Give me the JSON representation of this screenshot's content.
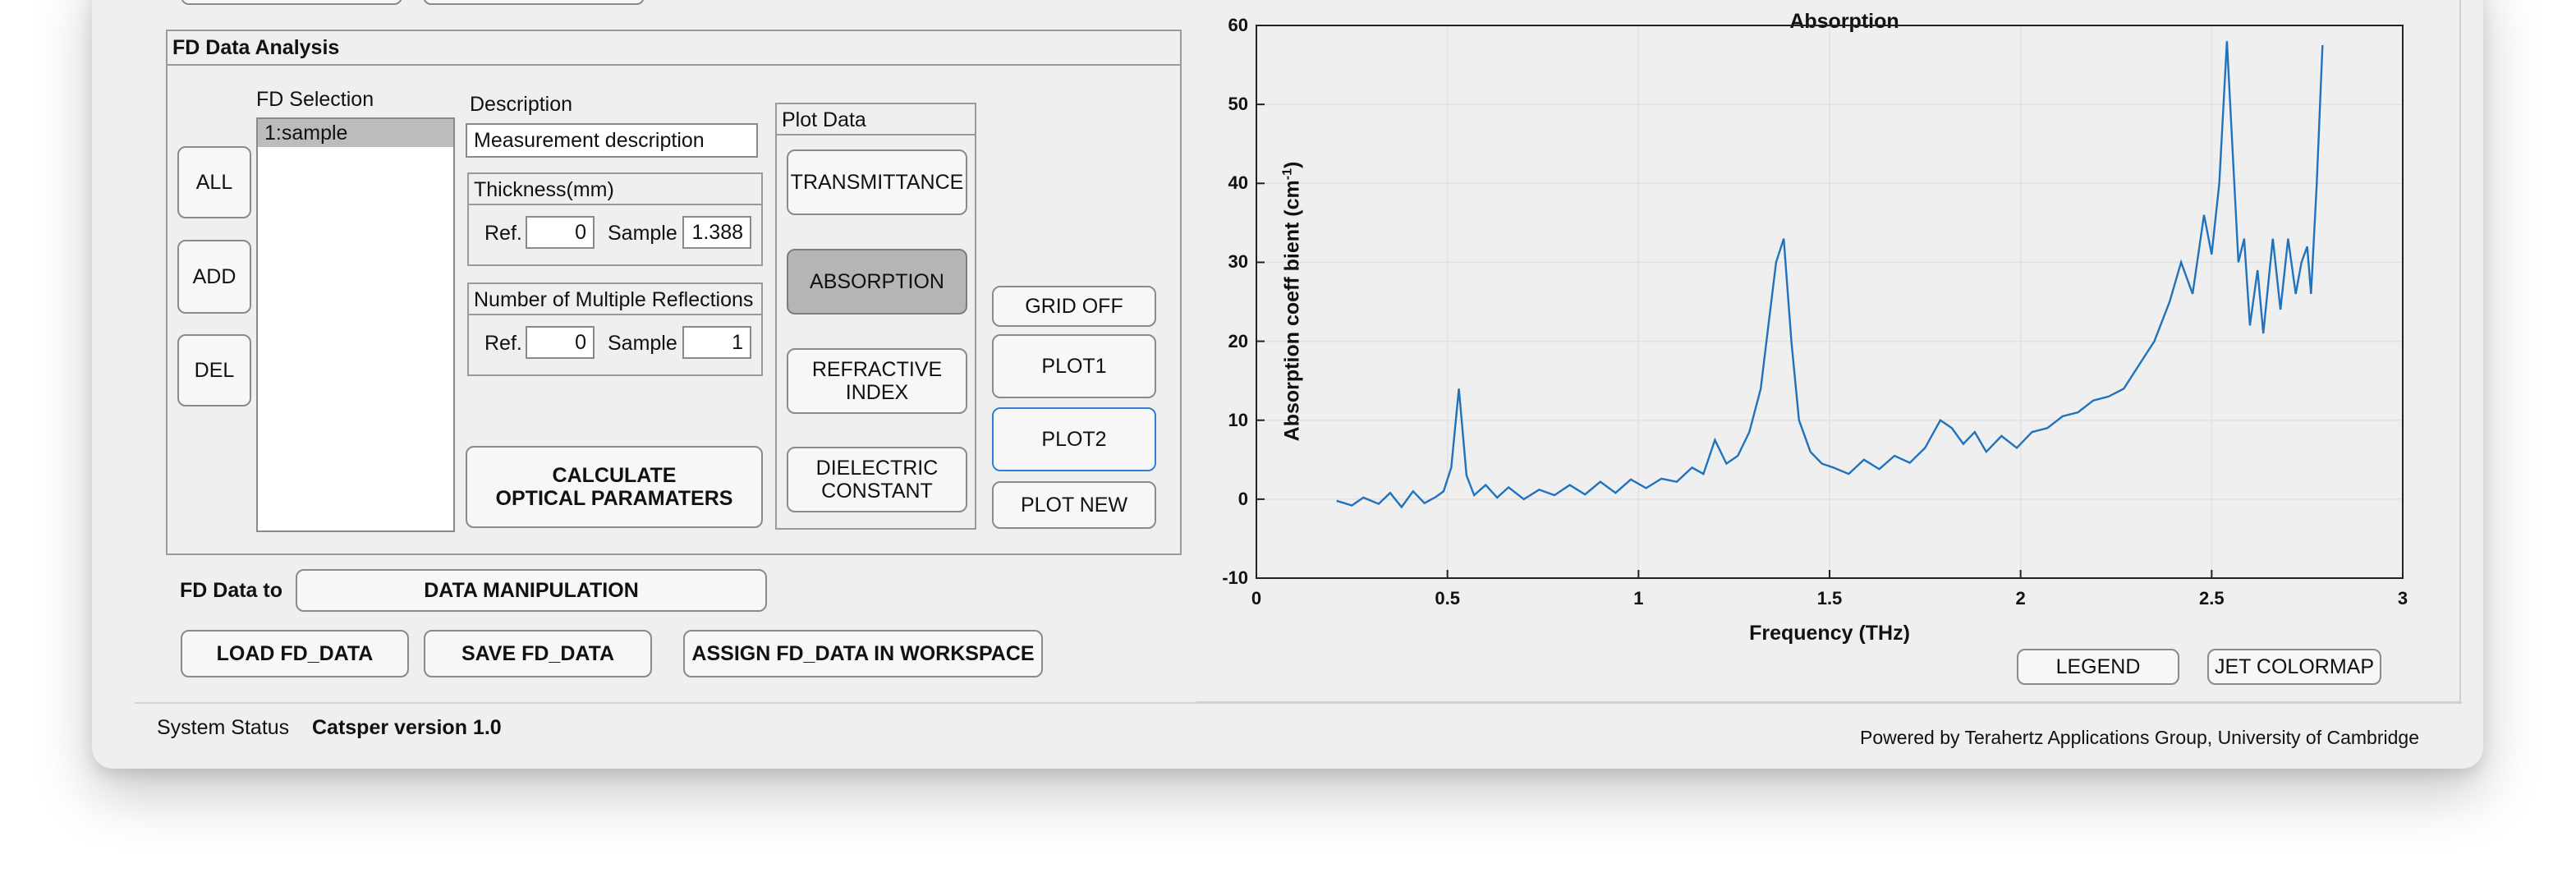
{
  "fd_panel": {
    "title": "FD Data Analysis",
    "selection_label": "FD Selection",
    "selection_items": [
      "1:sample"
    ],
    "all_button": "ALL",
    "add_button": "ADD",
    "del_button": "DEL",
    "description_label": "Description",
    "description_value": "Measurement description",
    "thickness_title": "Thickness(mm)",
    "thickness_ref_label": "Ref.",
    "thickness_ref_value": "0",
    "thickness_sample_label": "Sample",
    "thickness_sample_value": "1.388",
    "reflections_title": "Number of Multiple Reflections",
    "reflections_ref_label": "Ref.",
    "reflections_ref_value": "0",
    "reflections_sample_label": "Sample",
    "reflections_sample_value": "1",
    "calculate_line1": "CALCULATE",
    "calculate_line2": "OPTICAL PARAMATERS",
    "plot_data_title": "Plot Data",
    "transmittance_button": "TRANSMITTANCE",
    "absorption_button": "ABSORPTION",
    "refractive_line1": "REFRACTIVE",
    "refractive_line2": "INDEX",
    "dielectric_line1": "DIELECTRIC",
    "dielectric_line2": "CONSTANT",
    "grid_off_button": "GRID OFF",
    "plot1_button": "PLOT1",
    "plot2_button": "PLOT2",
    "plot_new_button": "PLOT NEW"
  },
  "bottom": {
    "fd_data_to_label": "FD Data to",
    "data_manipulation_button": "DATA MANIPULATION",
    "load_button": "LOAD FD_DATA",
    "save_button": "SAVE FD_DATA",
    "assign_button": "ASSIGN FD_DATA IN WORKSPACE",
    "legend_button": "LEGEND",
    "jet_colormap_button": "JET COLORMAP"
  },
  "status": {
    "label": "System Status",
    "value": "Catsper version 1.0",
    "credit": "Powered by Terahertz Applications Group, University of Cambridge"
  },
  "colors": {
    "series": "#1f72bd",
    "pressed": "#b5b5b5",
    "focus": "#2f7fd6"
  },
  "chart_data": {
    "type": "line",
    "title": "Absorption",
    "xlabel": "Frequency (THz)",
    "ylabel_main": "Absorption  coeff bient  (cm",
    "ylabel_sup": "-1",
    "ylabel_close": ")",
    "xlim": [
      0,
      3
    ],
    "ylim": [
      -10,
      60
    ],
    "xticks": [
      0,
      0.5,
      1,
      1.5,
      2,
      2.5,
      3
    ],
    "xtick_labels": [
      "0",
      "0.5",
      "1",
      "1.5",
      "2",
      "2.5",
      "3"
    ],
    "yticks": [
      -10,
      0,
      10,
      20,
      30,
      40,
      50,
      60
    ],
    "ytick_labels": [
      "-10",
      "0",
      "10",
      "20",
      "30",
      "40",
      "50",
      "60"
    ],
    "grid": true,
    "series": [
      {
        "x": [
          0.21,
          0.25,
          0.28,
          0.32,
          0.35,
          0.38,
          0.41,
          0.44,
          0.47,
          0.49,
          0.51,
          0.53,
          0.55,
          0.57,
          0.6,
          0.63,
          0.66,
          0.7,
          0.74,
          0.78,
          0.82,
          0.86,
          0.9,
          0.94,
          0.98,
          1.02,
          1.06,
          1.1,
          1.14,
          1.17,
          1.2,
          1.23,
          1.26,
          1.29,
          1.32,
          1.34,
          1.36,
          1.38,
          1.4,
          1.42,
          1.45,
          1.48,
          1.51,
          1.55,
          1.59,
          1.63,
          1.67,
          1.71,
          1.75,
          1.79,
          1.82,
          1.85,
          1.88,
          1.91,
          1.95,
          1.99,
          2.03,
          2.07,
          2.11,
          2.15,
          2.19,
          2.23,
          2.27,
          2.31,
          2.35,
          2.39,
          2.42,
          2.45,
          2.48,
          2.5,
          2.52,
          2.54,
          2.555,
          2.57,
          2.585,
          2.6,
          2.62,
          2.635,
          2.66,
          2.68,
          2.7,
          2.72,
          2.735,
          2.75,
          2.76,
          2.775,
          2.79
        ],
        "y": [
          -0.2,
          -0.8,
          0.2,
          -0.6,
          0.8,
          -1,
          1,
          -0.5,
          0.3,
          1,
          4,
          14,
          3,
          0.5,
          1.8,
          0.2,
          1.5,
          0,
          1.2,
          0.5,
          1.8,
          0.6,
          2.2,
          0.8,
          2.5,
          1.4,
          2.6,
          2.2,
          4,
          3.2,
          7.5,
          4.5,
          5.5,
          8.5,
          14,
          22,
          30,
          33,
          20,
          10,
          6,
          4.5,
          4,
          3.2,
          5,
          3.8,
          5.5,
          4.6,
          6.5,
          10,
          9,
          7,
          8.5,
          6,
          8,
          6.5,
          8.5,
          9,
          10.5,
          11,
          12.5,
          13,
          14,
          17,
          20,
          25,
          30,
          26,
          36,
          31,
          40,
          58,
          44,
          30,
          33,
          22,
          29,
          21,
          33,
          24,
          33,
          26,
          30,
          32,
          26,
          40,
          57.5
        ]
      }
    ]
  }
}
